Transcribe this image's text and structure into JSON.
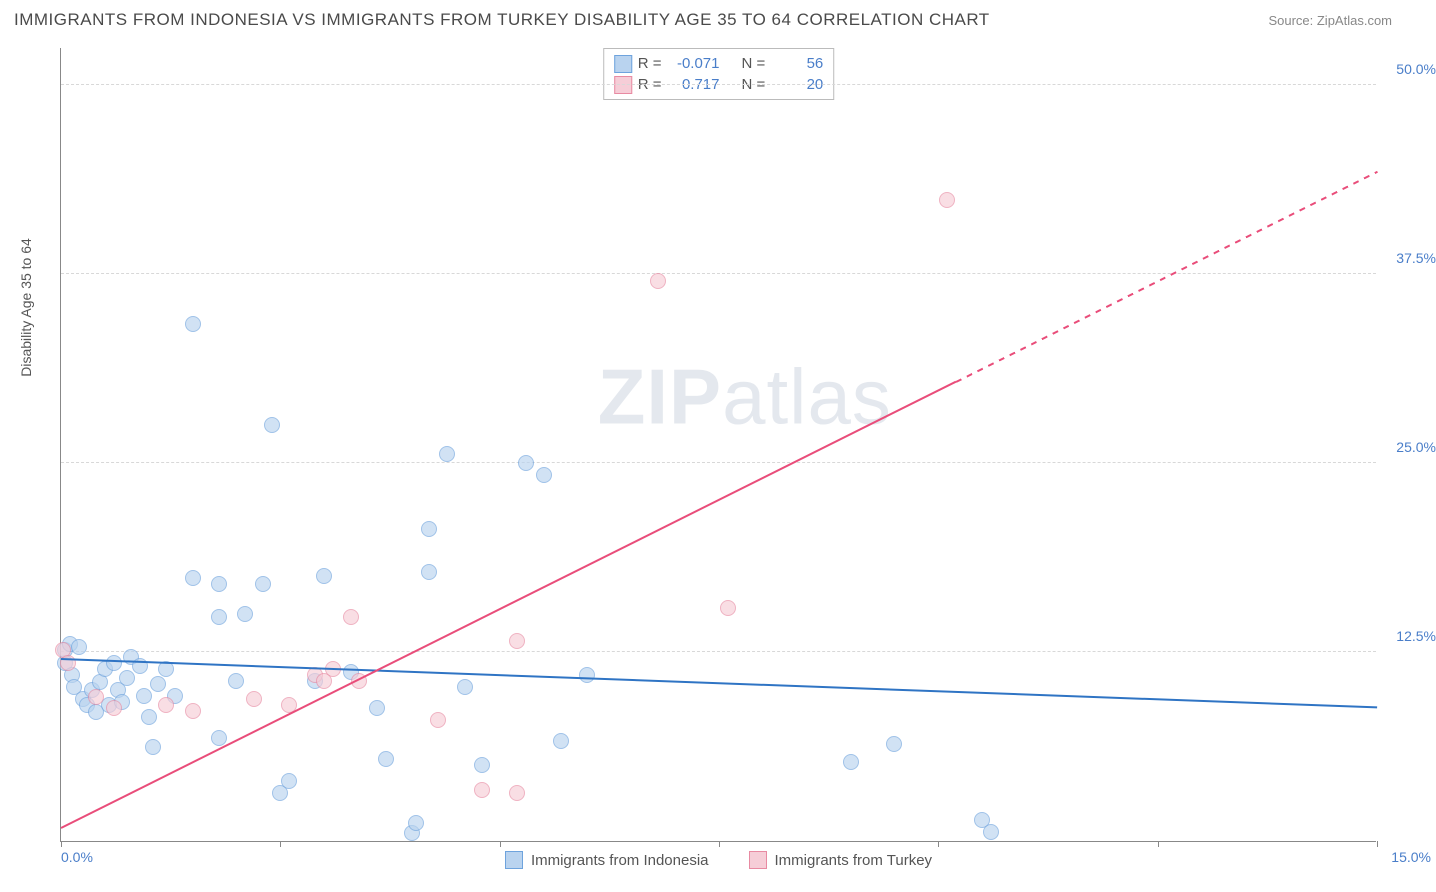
{
  "title": "IMMIGRANTS FROM INDONESIA VS IMMIGRANTS FROM TURKEY DISABILITY AGE 35 TO 64 CORRELATION CHART",
  "source": "Source: ZipAtlas.com",
  "ylabel": "Disability Age 35 to 64",
  "watermark_light": "ZIP",
  "watermark_rest": "atlas",
  "chart": {
    "type": "scatter",
    "background": "#ffffff",
    "grid_color": "#d8d8d8",
    "xlim": [
      0,
      15
    ],
    "ylim": [
      0,
      52.5
    ],
    "xticks": [
      0,
      2.5,
      5,
      7.5,
      10,
      12.5,
      15
    ],
    "xtick_labels": {
      "first": "0.0%",
      "last": "15.0%"
    },
    "yticks": [
      12.5,
      25.0,
      37.5,
      50.0
    ],
    "ytick_labels": [
      "12.5%",
      "25.0%",
      "37.5%",
      "50.0%"
    ]
  },
  "series": [
    {
      "name": "Immigrants from Indonesia",
      "fill": "#b9d3ef",
      "stroke": "#6ea3dd",
      "fill_opacity": 0.65,
      "stroke_width": 1,
      "marker_radius": 8,
      "R_label": "R =",
      "R": "-0.071",
      "N_label": "N =",
      "N": "56",
      "trend": {
        "color": "#2f74c4",
        "y_at_x0": 12.0,
        "y_at_xmax": 8.8,
        "width": 2
      },
      "points": [
        [
          0.05,
          11.8
        ],
        [
          0.05,
          12.6
        ],
        [
          0.1,
          13.0
        ],
        [
          0.12,
          11.0
        ],
        [
          0.15,
          10.2
        ],
        [
          0.2,
          12.8
        ],
        [
          0.25,
          9.4
        ],
        [
          0.3,
          9.0
        ],
        [
          0.35,
          10.0
        ],
        [
          0.4,
          8.5
        ],
        [
          0.45,
          10.5
        ],
        [
          0.5,
          11.4
        ],
        [
          0.55,
          9.0
        ],
        [
          0.6,
          11.8
        ],
        [
          0.65,
          10.0
        ],
        [
          0.7,
          9.2
        ],
        [
          0.75,
          10.8
        ],
        [
          0.8,
          12.2
        ],
        [
          0.9,
          11.6
        ],
        [
          0.95,
          9.6
        ],
        [
          1.0,
          8.2
        ],
        [
          1.05,
          6.2
        ],
        [
          1.1,
          10.4
        ],
        [
          1.2,
          11.4
        ],
        [
          1.3,
          9.6
        ],
        [
          1.5,
          17.4
        ],
        [
          1.5,
          34.2
        ],
        [
          1.8,
          14.8
        ],
        [
          1.8,
          17.0
        ],
        [
          1.8,
          6.8
        ],
        [
          2.0,
          10.6
        ],
        [
          2.1,
          15.0
        ],
        [
          2.3,
          17.0
        ],
        [
          2.4,
          27.5
        ],
        [
          2.5,
          3.2
        ],
        [
          2.6,
          4.0
        ],
        [
          2.9,
          10.6
        ],
        [
          3.0,
          17.5
        ],
        [
          3.3,
          11.2
        ],
        [
          3.6,
          8.8
        ],
        [
          3.7,
          5.4
        ],
        [
          4.0,
          0.5
        ],
        [
          4.05,
          1.2
        ],
        [
          4.2,
          17.8
        ],
        [
          4.2,
          20.6
        ],
        [
          4.4,
          25.6
        ],
        [
          4.6,
          10.2
        ],
        [
          4.8,
          5.0
        ],
        [
          5.3,
          25.0
        ],
        [
          5.5,
          24.2
        ],
        [
          5.7,
          6.6
        ],
        [
          6.0,
          11.0
        ],
        [
          9.0,
          5.2
        ],
        [
          9.5,
          6.4
        ],
        [
          10.5,
          1.4
        ],
        [
          10.6,
          0.6
        ]
      ]
    },
    {
      "name": "Immigrants from Turkey",
      "fill": "#f6cdd7",
      "stroke": "#e88aa2",
      "fill_opacity": 0.65,
      "stroke_width": 1,
      "marker_radius": 8,
      "R_label": "R =",
      "R": "0.717",
      "N_label": "N =",
      "N": "20",
      "trend": {
        "color": "#e94d7a",
        "y_at_x0": 0.8,
        "y_at_xmax": 44.2,
        "width": 2,
        "dashed_from_x": 10.2
      },
      "points": [
        [
          0.02,
          12.6
        ],
        [
          0.08,
          11.8
        ],
        [
          0.4,
          9.5
        ],
        [
          0.6,
          8.8
        ],
        [
          1.2,
          9.0
        ],
        [
          1.5,
          8.6
        ],
        [
          2.2,
          9.4
        ],
        [
          2.6,
          9.0
        ],
        [
          2.9,
          11.0
        ],
        [
          3.0,
          10.6
        ],
        [
          3.1,
          11.4
        ],
        [
          3.3,
          14.8
        ],
        [
          3.4,
          10.6
        ],
        [
          4.3,
          8.0
        ],
        [
          4.8,
          3.4
        ],
        [
          5.2,
          13.2
        ],
        [
          5.2,
          3.2
        ],
        [
          6.8,
          37.0
        ],
        [
          7.6,
          15.4
        ],
        [
          10.1,
          42.4
        ]
      ]
    }
  ],
  "bottom_legend": [
    {
      "label": "Immigrants from Indonesia",
      "fill": "#b9d3ef",
      "stroke": "#6ea3dd"
    },
    {
      "label": "Immigrants from Turkey",
      "fill": "#f6cdd7",
      "stroke": "#e88aa2"
    }
  ]
}
